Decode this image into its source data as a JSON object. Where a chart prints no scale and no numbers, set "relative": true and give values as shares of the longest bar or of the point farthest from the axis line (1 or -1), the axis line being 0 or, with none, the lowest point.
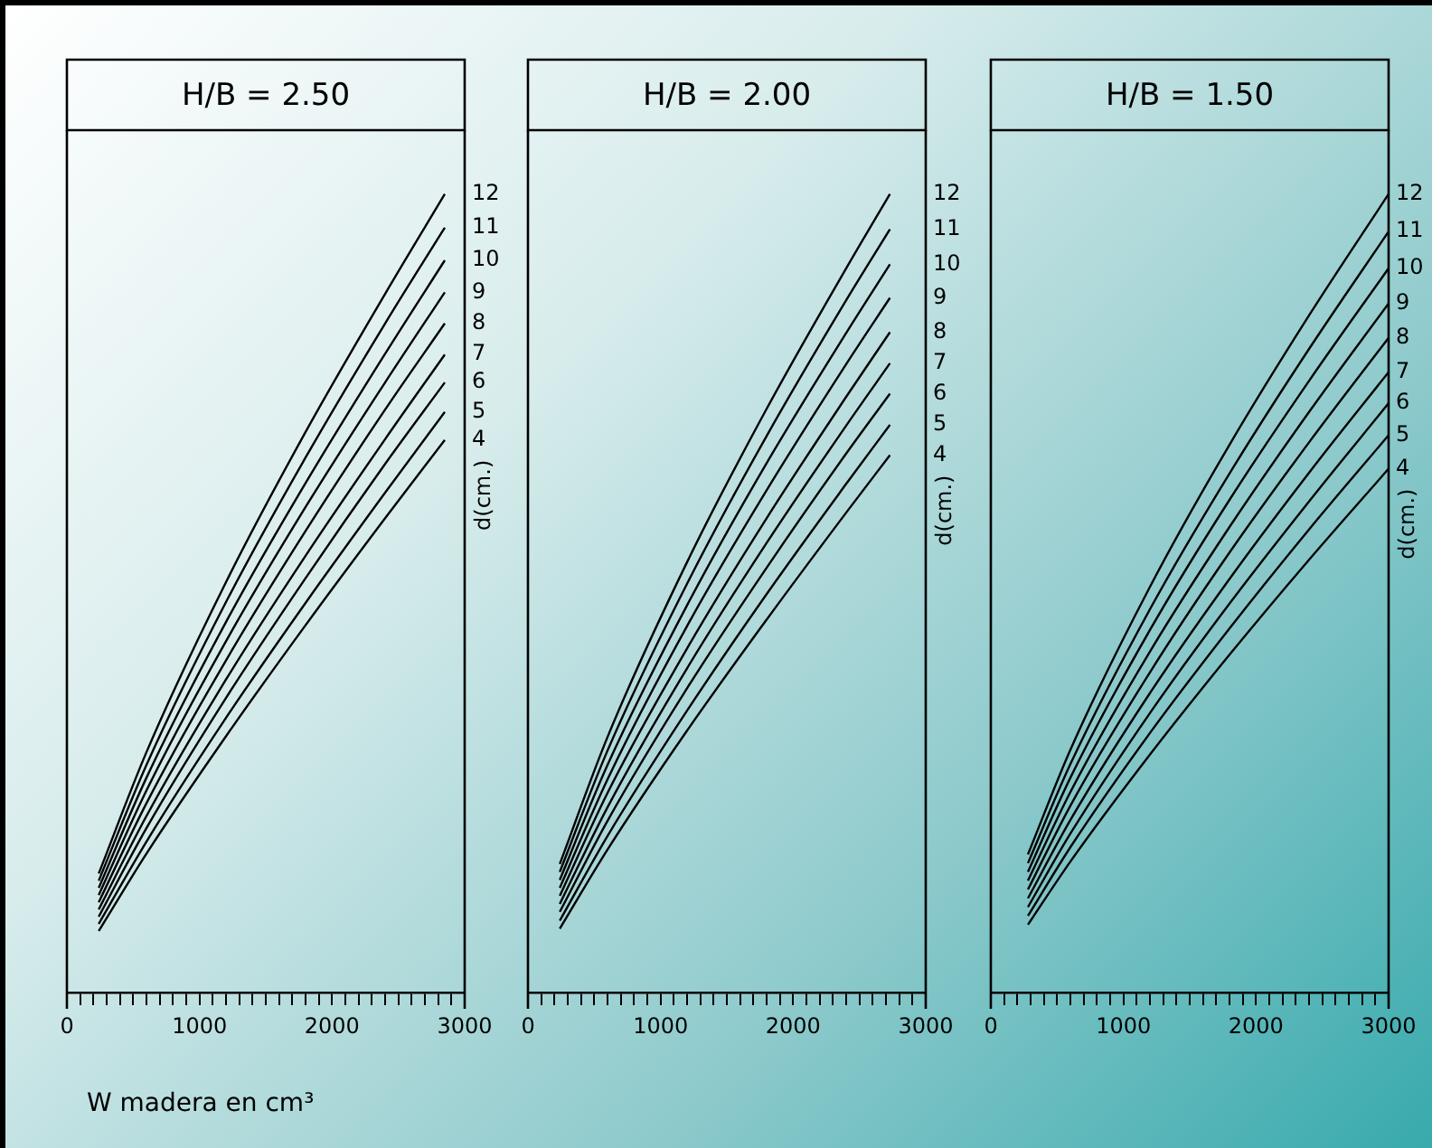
{
  "chart_data": [
    {
      "type": "line",
      "title": "H/B = 2.50",
      "xlabel": "W madera en cm³",
      "legend_title": "d(cm.)",
      "relative": true,
      "tick_labels": "x",
      "grid": false,
      "legend": false,
      "x": [
        240,
        600,
        1200,
        1800,
        2400,
        2850
      ],
      "xlim": [
        0,
        3000
      ],
      "xticks": [
        0,
        {
          "value": 100,
          "label": null
        },
        {
          "value": 200,
          "label": null
        },
        {
          "value": 300,
          "label": null
        },
        {
          "value": 400,
          "label": null
        },
        {
          "value": 500,
          "label": null
        },
        {
          "value": 600,
          "label": null
        },
        {
          "value": 700,
          "label": null
        },
        {
          "value": 800,
          "label": null
        },
        {
          "value": 900,
          "label": null
        },
        1000,
        {
          "value": 1100,
          "label": null
        },
        {
          "value": 1200,
          "label": null
        },
        {
          "value": 1300,
          "label": null
        },
        {
          "value": 1400,
          "label": null
        },
        {
          "value": 1500,
          "label": null
        },
        {
          "value": 1600,
          "label": null
        },
        {
          "value": 1700,
          "label": null
        },
        {
          "value": 1800,
          "label": null
        },
        {
          "value": 1900,
          "label": null
        },
        2000,
        {
          "value": 2100,
          "label": null
        },
        {
          "value": 2200,
          "label": null
        },
        {
          "value": 2300,
          "label": null
        },
        {
          "value": 2400,
          "label": null
        },
        {
          "value": 2500,
          "label": null
        },
        {
          "value": 2600,
          "label": null
        },
        {
          "value": 2700,
          "label": null
        },
        {
          "value": 2800,
          "label": null
        },
        {
          "value": 2900,
          "label": null
        },
        3000
      ],
      "series": [
        {
          "name": "4",
          "color": "#000000",
          "values": [
            0.077,
            0.174,
            0.321,
            0.46,
            0.594,
            0.692
          ]
        },
        {
          "name": "5",
          "color": "#000000",
          "values": [
            0.086,
            0.189,
            0.344,
            0.488,
            0.626,
            0.727
          ]
        },
        {
          "name": "6",
          "color": "#000000",
          "values": [
            0.095,
            0.206,
            0.369,
            0.519,
            0.662,
            0.764
          ]
        },
        {
          "name": "7",
          "color": "#000000",
          "values": [
            0.104,
            0.221,
            0.392,
            0.547,
            0.693,
            0.799
          ]
        },
        {
          "name": "8",
          "color": "#000000",
          "values": [
            0.113,
            0.237,
            0.416,
            0.578,
            0.73,
            0.838
          ]
        },
        {
          "name": "9",
          "color": "#000000",
          "values": [
            0.122,
            0.253,
            0.44,
            0.608,
            0.764,
            0.877
          ]
        },
        {
          "name": "10",
          "color": "#000000",
          "values": [
            0.131,
            0.269,
            0.464,
            0.638,
            0.8,
            0.917
          ]
        },
        {
          "name": "11",
          "color": "#000000",
          "values": [
            0.14,
            0.285,
            0.489,
            0.67,
            0.838,
            0.958
          ]
        },
        {
          "name": "12",
          "color": "#000000",
          "values": [
            0.149,
            0.301,
            0.514,
            0.702,
            0.875,
            1
          ]
        }
      ]
    },
    {
      "type": "line",
      "title": "H/B = 2.00",
      "legend_title": "d(cm.)",
      "relative": true,
      "tick_labels": "x",
      "grid": false,
      "legend": false,
      "x": [
        240,
        600,
        1200,
        1800,
        2400,
        2730
      ],
      "xlim": [
        0,
        3000
      ],
      "xticks": [
        0,
        {
          "value": 100,
          "label": null
        },
        {
          "value": 200,
          "label": null
        },
        {
          "value": 300,
          "label": null
        },
        {
          "value": 400,
          "label": null
        },
        {
          "value": 500,
          "label": null
        },
        {
          "value": 600,
          "label": null
        },
        {
          "value": 700,
          "label": null
        },
        {
          "value": 800,
          "label": null
        },
        {
          "value": 900,
          "label": null
        },
        1000,
        {
          "value": 1100,
          "label": null
        },
        {
          "value": 1200,
          "label": null
        },
        {
          "value": 1300,
          "label": null
        },
        {
          "value": 1400,
          "label": null
        },
        {
          "value": 1500,
          "label": null
        },
        {
          "value": 1600,
          "label": null
        },
        {
          "value": 1700,
          "label": null
        },
        {
          "value": 1800,
          "label": null
        },
        {
          "value": 1900,
          "label": null
        },
        2000,
        {
          "value": 2100,
          "label": null
        },
        {
          "value": 2200,
          "label": null
        },
        {
          "value": 2300,
          "label": null
        },
        {
          "value": 2400,
          "label": null
        },
        {
          "value": 2500,
          "label": null
        },
        {
          "value": 2600,
          "label": null
        },
        {
          "value": 2700,
          "label": null
        },
        {
          "value": 2800,
          "label": null
        },
        {
          "value": 2900,
          "label": null
        },
        3000
      ],
      "series": [
        {
          "name": "4",
          "color": "#000000",
          "values": [
            0.08,
            0.179,
            0.328,
            0.467,
            0.601,
            0.673
          ]
        },
        {
          "name": "5",
          "color": "#000000",
          "values": [
            0.09,
            0.196,
            0.353,
            0.499,
            0.637,
            0.711
          ]
        },
        {
          "name": "6",
          "color": "#000000",
          "values": [
            0.101,
            0.215,
            0.381,
            0.532,
            0.675,
            0.75
          ]
        },
        {
          "name": "7",
          "color": "#000000",
          "values": [
            0.111,
            0.232,
            0.406,
            0.563,
            0.71,
            0.788
          ]
        },
        {
          "name": "8",
          "color": "#000000",
          "values": [
            0.121,
            0.25,
            0.431,
            0.594,
            0.746,
            0.827
          ]
        },
        {
          "name": "9",
          "color": "#000000",
          "values": [
            0.131,
            0.267,
            0.459,
            0.629,
            0.787,
            0.87
          ]
        },
        {
          "name": "10",
          "color": "#000000",
          "values": [
            0.141,
            0.285,
            0.485,
            0.663,
            0.826,
            0.912
          ]
        },
        {
          "name": "11",
          "color": "#000000",
          "values": [
            0.151,
            0.303,
            0.512,
            0.697,
            0.867,
            0.956
          ]
        },
        {
          "name": "12",
          "color": "#000000",
          "values": [
            0.161,
            0.32,
            0.539,
            0.731,
            0.907,
            1
          ]
        }
      ]
    },
    {
      "type": "line",
      "title": "H/B = 1.50",
      "legend_title": "d(cm.)",
      "relative": true,
      "tick_labels": "x",
      "grid": false,
      "legend": false,
      "x": [
        280,
        600,
        1200,
        1800,
        2400,
        3000
      ],
      "xlim": [
        0,
        3000
      ],
      "xticks": [
        0,
        {
          "value": 100,
          "label": null
        },
        {
          "value": 200,
          "label": null
        },
        {
          "value": 300,
          "label": null
        },
        {
          "value": 400,
          "label": null
        },
        {
          "value": 500,
          "label": null
        },
        {
          "value": 600,
          "label": null
        },
        {
          "value": 700,
          "label": null
        },
        {
          "value": 800,
          "label": null
        },
        {
          "value": 900,
          "label": null
        },
        1000,
        {
          "value": 1100,
          "label": null
        },
        {
          "value": 1200,
          "label": null
        },
        {
          "value": 1300,
          "label": null
        },
        {
          "value": 1400,
          "label": null
        },
        {
          "value": 1500,
          "label": null
        },
        {
          "value": 1600,
          "label": null
        },
        {
          "value": 1700,
          "label": null
        },
        {
          "value": 1800,
          "label": null
        },
        {
          "value": 1900,
          "label": null
        },
        2000,
        {
          "value": 2100,
          "label": null
        },
        {
          "value": 2200,
          "label": null
        },
        {
          "value": 2300,
          "label": null
        },
        {
          "value": 2400,
          "label": null
        },
        {
          "value": 2500,
          "label": null
        },
        {
          "value": 2600,
          "label": null
        },
        {
          "value": 2700,
          "label": null
        },
        {
          "value": 2800,
          "label": null
        },
        {
          "value": 2900,
          "label": null
        },
        3000
      ],
      "series": [
        {
          "name": "4",
          "color": "#000000",
          "values": [
            0.085,
            0.164,
            0.298,
            0.423,
            0.542,
            0.656
          ]
        },
        {
          "name": "5",
          "color": "#000000",
          "values": [
            0.096,
            0.182,
            0.325,
            0.456,
            0.58,
            0.698
          ]
        },
        {
          "name": "6",
          "color": "#000000",
          "values": [
            0.107,
            0.199,
            0.35,
            0.487,
            0.615,
            0.738
          ]
        },
        {
          "name": "7",
          "color": "#000000",
          "values": [
            0.118,
            0.216,
            0.375,
            0.518,
            0.651,
            0.777
          ]
        },
        {
          "name": "8",
          "color": "#000000",
          "values": [
            0.129,
            0.234,
            0.401,
            0.551,
            0.689,
            0.82
          ]
        },
        {
          "name": "9",
          "color": "#000000",
          "values": [
            0.14,
            0.251,
            0.427,
            0.583,
            0.727,
            0.863
          ]
        },
        {
          "name": "10",
          "color": "#000000",
          "values": [
            0.151,
            0.269,
            0.454,
            0.617,
            0.766,
            0.907
          ]
        },
        {
          "name": "11",
          "color": "#000000",
          "values": [
            0.162,
            0.286,
            0.48,
            0.65,
            0.806,
            0.953
          ]
        },
        {
          "name": "12",
          "color": "#000000",
          "values": [
            0.173,
            0.304,
            0.508,
            0.686,
            0.848,
            1
          ]
        }
      ]
    }
  ]
}
